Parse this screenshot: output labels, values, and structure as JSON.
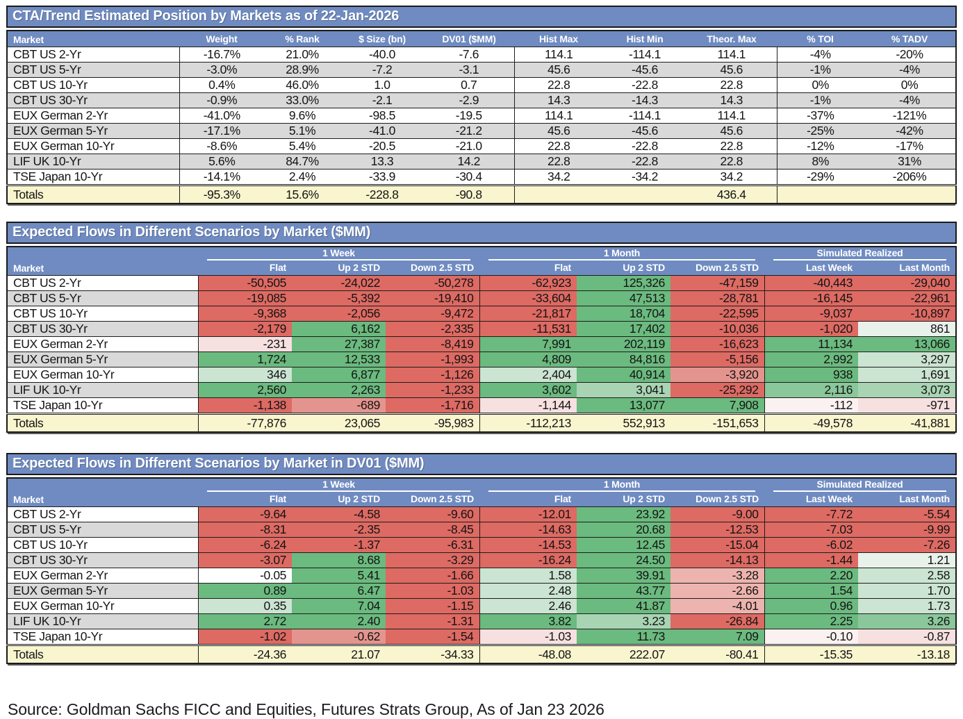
{
  "palette": {
    "header_blue": "#6F8BC1",
    "row_alt_gray": "#D9D9D9",
    "totals_yellow": "#F8F5CF",
    "cell_colors": {
      "r4": "#DD6A63",
      "r3": "#E4948E",
      "r2": "#EDB3AE",
      "r1": "#F6E0E0",
      "r0": "#FBF1F1",
      "w": "#FFFFFF",
      "g0": "#E9F1EB",
      "g1": "#CCE4D2",
      "g2": "#A8D4B3",
      "g3": "#8AC79A",
      "g4": "#6BBA7F"
    }
  },
  "position_table": {
    "title": "CTA/Trend Estimated Position by Markets as of 22-Jan-2026",
    "columns": [
      "Market",
      "Weight",
      "% Rank",
      "$ Size (bn)",
      "DV01 ($MM)",
      "Hist Max",
      "Hist Min",
      "Theor. Max",
      "% TOI",
      "% TADV"
    ],
    "rows": [
      [
        "CBT US 2-Yr",
        "-16.7%",
        "21.0%",
        "-40.0",
        "-7.6",
        "114.1",
        "-114.1",
        "114.1",
        "-4%",
        "-20%"
      ],
      [
        "CBT US 5-Yr",
        "-3.0%",
        "28.9%",
        "-7.2",
        "-3.1",
        "45.6",
        "-45.6",
        "45.6",
        "-1%",
        "-4%"
      ],
      [
        "CBT US 10-Yr",
        "0.4%",
        "46.0%",
        "1.0",
        "0.7",
        "22.8",
        "-22.8",
        "22.8",
        "0%",
        "0%"
      ],
      [
        "CBT US 30-Yr",
        "-0.9%",
        "33.0%",
        "-2.1",
        "-2.9",
        "14.3",
        "-14.3",
        "14.3",
        "-1%",
        "-4%"
      ],
      [
        "EUX German 2-Yr",
        "-41.0%",
        "9.6%",
        "-98.5",
        "-19.5",
        "114.1",
        "-114.1",
        "114.1",
        "-37%",
        "-121%"
      ],
      [
        "EUX German 5-Yr",
        "-17.1%",
        "5.1%",
        "-41.0",
        "-21.2",
        "45.6",
        "-45.6",
        "45.6",
        "-25%",
        "-42%"
      ],
      [
        "EUX German 10-Yr",
        "-8.6%",
        "5.4%",
        "-20.5",
        "-21.0",
        "22.8",
        "-22.8",
        "22.8",
        "-12%",
        "-17%"
      ],
      [
        "LIF UK 10-Yr",
        "5.6%",
        "84.7%",
        "13.3",
        "14.2",
        "22.8",
        "-22.8",
        "22.8",
        "8%",
        "31%"
      ],
      [
        "TSE Japan 10-Yr",
        "-14.1%",
        "2.4%",
        "-33.9",
        "-30.4",
        "34.2",
        "-34.2",
        "34.2",
        "-29%",
        "-206%"
      ]
    ],
    "totals": [
      "Totals",
      "-95.3%",
      "15.6%",
      "-228.8",
      "-90.8",
      "",
      "",
      "436.4",
      "",
      ""
    ]
  },
  "flows_mm_table": {
    "title": "Expected Flows in Different Scenarios by Market ($MM)",
    "market_header": "Market",
    "groups": [
      {
        "label": "1 Week",
        "span": 3
      },
      {
        "label": "1 Month",
        "span": 3
      },
      {
        "label": "Simulated Realized",
        "span": 2
      }
    ],
    "sub_columns": [
      "Flat",
      "Up 2 STD",
      "Down 2.5 STD",
      "Flat",
      "Up 2 STD",
      "Down 2.5 STD",
      "Last Week",
      "Last Month"
    ],
    "rows": [
      {
        "market": "CBT US 2-Yr",
        "cells": [
          [
            "-50,505",
            "r4"
          ],
          [
            "-24,022",
            "r4"
          ],
          [
            "-50,278",
            "r4"
          ],
          [
            "-62,923",
            "r4"
          ],
          [
            "125,326",
            "g4"
          ],
          [
            "-47,159",
            "r4"
          ],
          [
            "-40,443",
            "r4"
          ],
          [
            "-29,040",
            "r4"
          ]
        ]
      },
      {
        "market": "CBT US 5-Yr",
        "cells": [
          [
            "-19,085",
            "r4"
          ],
          [
            "-5,392",
            "r4"
          ],
          [
            "-19,410",
            "r4"
          ],
          [
            "-33,604",
            "r4"
          ],
          [
            "47,513",
            "g4"
          ],
          [
            "-28,781",
            "r4"
          ],
          [
            "-16,145",
            "r4"
          ],
          [
            "-22,961",
            "r4"
          ]
        ]
      },
      {
        "market": "CBT US 10-Yr",
        "cells": [
          [
            "-9,368",
            "r4"
          ],
          [
            "-2,056",
            "r4"
          ],
          [
            "-9,472",
            "r4"
          ],
          [
            "-21,817",
            "r4"
          ],
          [
            "18,704",
            "g4"
          ],
          [
            "-22,595",
            "r4"
          ],
          [
            "-9,037",
            "r4"
          ],
          [
            "-10,897",
            "r4"
          ]
        ]
      },
      {
        "market": "CBT US 30-Yr",
        "cells": [
          [
            "-2,179",
            "r4"
          ],
          [
            "6,162",
            "g4"
          ],
          [
            "-2,335",
            "r4"
          ],
          [
            "-11,531",
            "r4"
          ],
          [
            "17,402",
            "g4"
          ],
          [
            "-10,036",
            "r4"
          ],
          [
            "-1,020",
            "r4"
          ],
          [
            "861",
            "g0"
          ]
        ]
      },
      {
        "market": "EUX German 2-Yr",
        "cells": [
          [
            "-231",
            "r1"
          ],
          [
            "27,387",
            "g4"
          ],
          [
            "-8,419",
            "r4"
          ],
          [
            "7,991",
            "g4"
          ],
          [
            "202,119",
            "g4"
          ],
          [
            "-16,623",
            "r4"
          ],
          [
            "11,134",
            "g4"
          ],
          [
            "13,066",
            "g4"
          ]
        ]
      },
      {
        "market": "EUX German 5-Yr",
        "cells": [
          [
            "1,724",
            "g4"
          ],
          [
            "12,533",
            "g4"
          ],
          [
            "-1,993",
            "r4"
          ],
          [
            "4,809",
            "g4"
          ],
          [
            "84,816",
            "g4"
          ],
          [
            "-5,156",
            "r4"
          ],
          [
            "2,992",
            "g4"
          ],
          [
            "3,297",
            "g1"
          ]
        ]
      },
      {
        "market": "EUX German 10-Yr",
        "cells": [
          [
            "346",
            "g1"
          ],
          [
            "6,877",
            "g4"
          ],
          [
            "-1,126",
            "r4"
          ],
          [
            "2,404",
            "g1"
          ],
          [
            "40,914",
            "g4"
          ],
          [
            "-3,920",
            "r3"
          ],
          [
            "938",
            "g4"
          ],
          [
            "1,691",
            "g1"
          ]
        ]
      },
      {
        "market": "LIF UK 10-Yr",
        "cells": [
          [
            "2,560",
            "g4"
          ],
          [
            "2,263",
            "g4"
          ],
          [
            "-1,233",
            "r4"
          ],
          [
            "3,602",
            "g4"
          ],
          [
            "3,041",
            "g2"
          ],
          [
            "-25,292",
            "r4"
          ],
          [
            "2,116",
            "g3"
          ],
          [
            "3,073",
            "g2"
          ]
        ]
      },
      {
        "market": "TSE Japan 10-Yr",
        "cells": [
          [
            "-1,138",
            "r4"
          ],
          [
            "-689",
            "r3"
          ],
          [
            "-1,716",
            "r4"
          ],
          [
            "-1,144",
            "r1"
          ],
          [
            "13,077",
            "g4"
          ],
          [
            "7,908",
            "g4"
          ],
          [
            "-112",
            "r0"
          ],
          [
            "-971",
            "r1"
          ]
        ]
      }
    ],
    "totals_label": "Totals",
    "totals": [
      "-77,876",
      "23,065",
      "-95,983",
      "-112,213",
      "552,913",
      "-151,653",
      "-49,578",
      "-41,881"
    ]
  },
  "flows_dv01_table": {
    "title": "Expected Flows in Different Scenarios by Market in DV01 ($MM)",
    "market_header": "Market",
    "groups": [
      {
        "label": "1 Week",
        "span": 3
      },
      {
        "label": "1 Month",
        "span": 3
      },
      {
        "label": "Simulated Realized",
        "span": 2
      }
    ],
    "sub_columns": [
      "Flat",
      "Up 2 STD",
      "Down 2.5 STD",
      "Flat",
      "Up 2 STD",
      "Down 2.5 STD",
      "Last Week",
      "Last Month"
    ],
    "rows": [
      {
        "market": "CBT US 2-Yr",
        "cells": [
          [
            "-9.64",
            "r4"
          ],
          [
            "-4.58",
            "r4"
          ],
          [
            "-9.60",
            "r4"
          ],
          [
            "-12.01",
            "r4"
          ],
          [
            "23.92",
            "g4"
          ],
          [
            "-9.00",
            "r4"
          ],
          [
            "-7.72",
            "r4"
          ],
          [
            "-5.54",
            "r4"
          ]
        ]
      },
      {
        "market": "CBT US 5-Yr",
        "cells": [
          [
            "-8.31",
            "r4"
          ],
          [
            "-2.35",
            "r4"
          ],
          [
            "-8.45",
            "r4"
          ],
          [
            "-14.63",
            "r4"
          ],
          [
            "20.68",
            "g4"
          ],
          [
            "-12.53",
            "r4"
          ],
          [
            "-7.03",
            "r4"
          ],
          [
            "-9.99",
            "r4"
          ]
        ]
      },
      {
        "market": "CBT US 10-Yr",
        "cells": [
          [
            "-6.24",
            "r4"
          ],
          [
            "-1.37",
            "r4"
          ],
          [
            "-6.31",
            "r4"
          ],
          [
            "-14.53",
            "r4"
          ],
          [
            "12.45",
            "g4"
          ],
          [
            "-15.04",
            "r4"
          ],
          [
            "-6.02",
            "r4"
          ],
          [
            "-7.26",
            "r4"
          ]
        ]
      },
      {
        "market": "CBT US 30-Yr",
        "cells": [
          [
            "-3.07",
            "r4"
          ],
          [
            "8.68",
            "g4"
          ],
          [
            "-3.29",
            "r4"
          ],
          [
            "-16.24",
            "r4"
          ],
          [
            "24.50",
            "g4"
          ],
          [
            "-14.13",
            "r4"
          ],
          [
            "-1.44",
            "r4"
          ],
          [
            "1.21",
            "g0"
          ]
        ]
      },
      {
        "market": "EUX German 2-Yr",
        "cells": [
          [
            "-0.05",
            "w"
          ],
          [
            "5.41",
            "g4"
          ],
          [
            "-1.66",
            "r4"
          ],
          [
            "1.58",
            "g1"
          ],
          [
            "39.91",
            "g4"
          ],
          [
            "-3.28",
            "r2"
          ],
          [
            "2.20",
            "g4"
          ],
          [
            "2.58",
            "g1"
          ]
        ]
      },
      {
        "market": "EUX German 5-Yr",
        "cells": [
          [
            "0.89",
            "g4"
          ],
          [
            "6.47",
            "g4"
          ],
          [
            "-1.03",
            "r4"
          ],
          [
            "2.48",
            "g1"
          ],
          [
            "43.77",
            "g4"
          ],
          [
            "-2.66",
            "r2"
          ],
          [
            "1.54",
            "g4"
          ],
          [
            "1.70",
            "g1"
          ]
        ]
      },
      {
        "market": "EUX German 10-Yr",
        "cells": [
          [
            "0.35",
            "g1"
          ],
          [
            "7.04",
            "g4"
          ],
          [
            "-1.15",
            "r4"
          ],
          [
            "2.46",
            "g1"
          ],
          [
            "41.87",
            "g4"
          ],
          [
            "-4.01",
            "r2"
          ],
          [
            "0.96",
            "g4"
          ],
          [
            "1.73",
            "g1"
          ]
        ]
      },
      {
        "market": "LIF UK 10-Yr",
        "cells": [
          [
            "2.72",
            "g4"
          ],
          [
            "2.40",
            "g4"
          ],
          [
            "-1.31",
            "r4"
          ],
          [
            "3.82",
            "g4"
          ],
          [
            "3.23",
            "g2"
          ],
          [
            "-26.84",
            "r4"
          ],
          [
            "2.25",
            "g4"
          ],
          [
            "3.26",
            "g3"
          ]
        ]
      },
      {
        "market": "TSE Japan 10-Yr",
        "cells": [
          [
            "-1.02",
            "r4"
          ],
          [
            "-0.62",
            "r3"
          ],
          [
            "-1.54",
            "r4"
          ],
          [
            "-1.03",
            "r1"
          ],
          [
            "11.73",
            "g4"
          ],
          [
            "7.09",
            "g4"
          ],
          [
            "-0.10",
            "r0"
          ],
          [
            "-0.87",
            "r1"
          ]
        ]
      }
    ],
    "totals_label": "Totals",
    "totals": [
      "-24.36",
      "21.07",
      "-34.33",
      "-48.08",
      "222.07",
      "-80.41",
      "-15.35",
      "-13.18"
    ]
  },
  "source_line": "Source: Goldman Sachs FICC and Equities, Futures Strats Group, As of Jan 23 2026"
}
